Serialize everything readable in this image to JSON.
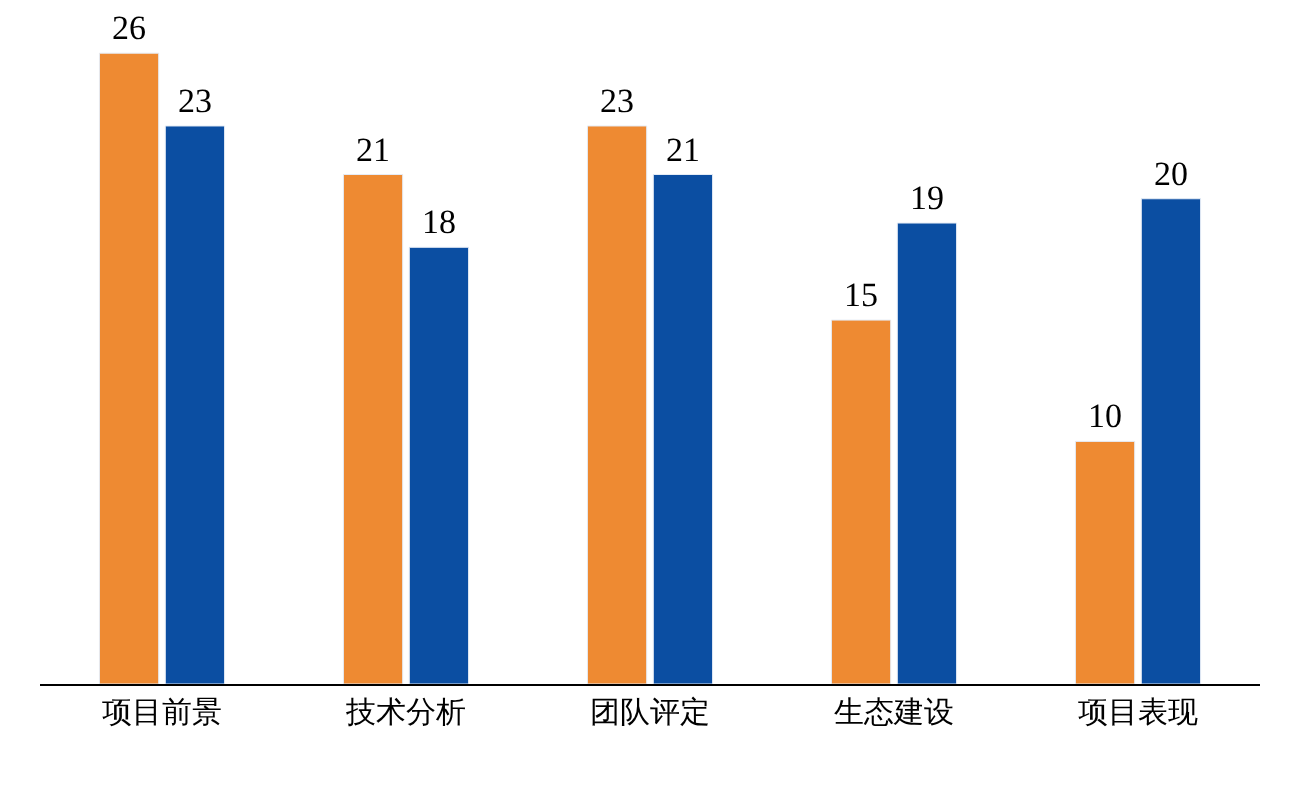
{
  "chart_data": {
    "type": "bar",
    "categories": [
      "项目前景",
      "技术分析",
      "团队评定",
      "生态建设",
      "项目表现"
    ],
    "series": [
      {
        "color": "#ee8a32",
        "values": [
          26,
          21,
          23,
          15,
          10
        ]
      },
      {
        "color": "#0b4ea2",
        "values": [
          23,
          18,
          21,
          19,
          20
        ]
      }
    ],
    "data_labels": true,
    "legend": false,
    "tick_labels": "x"
  }
}
